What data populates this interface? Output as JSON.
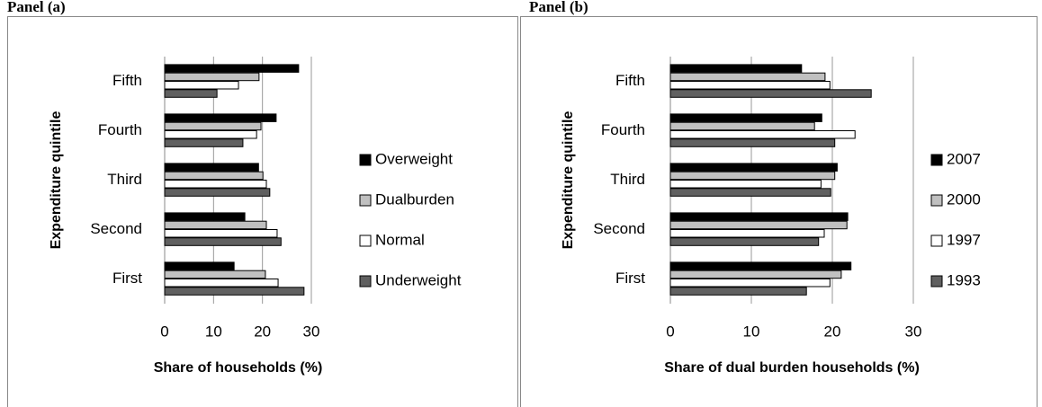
{
  "chart_data": [
    {
      "type": "bar",
      "orientation": "horizontal",
      "title": "Panel (a)",
      "x_label": "Share of households (%)",
      "y_label": "Expenditure quintile",
      "categories": [
        "First",
        "Second",
        "Third",
        "Fourth",
        "Fifth"
      ],
      "series": [
        {
          "name": "Overweight",
          "color": "#000000",
          "values": [
            14.2,
            16.4,
            19.2,
            22.8,
            27.4
          ]
        },
        {
          "name": "Dualburden",
          "color": "#c0c0c0",
          "values": [
            20.6,
            20.8,
            20.1,
            19.7,
            19.3
          ]
        },
        {
          "name": "Normal",
          "color": "#ffffff",
          "values": [
            23.2,
            23.0,
            20.8,
            18.8,
            15.1
          ]
        },
        {
          "name": "Underweight",
          "color": "#606060",
          "values": [
            28.5,
            23.8,
            21.5,
            16.0,
            10.7
          ]
        }
      ],
      "xlim": [
        0,
        30
      ],
      "xticks": [
        0,
        10,
        20,
        30
      ],
      "grid": true,
      "legend": "right"
    },
    {
      "type": "bar",
      "orientation": "horizontal",
      "title": "Panel (b)",
      "x_label": "Share of dual burden households (%)",
      "y_label": "Expenditure quintile",
      "categories": [
        "First",
        "Second",
        "Third",
        "Fourth",
        "Fifth"
      ],
      "series": [
        {
          "name": "2007",
          "color": "#000000",
          "values": [
            22.3,
            21.9,
            20.6,
            18.7,
            16.2
          ]
        },
        {
          "name": "2000",
          "color": "#c0c0c0",
          "values": [
            21.1,
            21.8,
            20.3,
            17.8,
            19.1
          ]
        },
        {
          "name": "1997",
          "color": "#ffffff",
          "values": [
            19.7,
            19.0,
            18.6,
            22.8,
            19.7
          ]
        },
        {
          "name": "1993",
          "color": "#606060",
          "values": [
            16.8,
            18.3,
            19.8,
            20.3,
            24.8
          ]
        }
      ],
      "xlim": [
        0,
        30
      ],
      "xticks": [
        0,
        10,
        20,
        30
      ],
      "grid": true,
      "legend": "right"
    }
  ]
}
